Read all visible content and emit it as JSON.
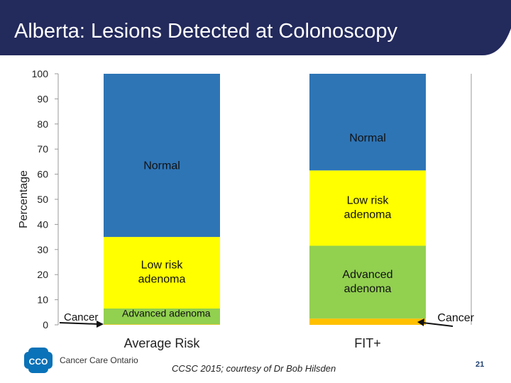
{
  "slide": {
    "title": "Alberta: Lesions Detected at Colonoscopy",
    "logo_text": "Cancer Care Ontario",
    "logo_abbrev": "CCO",
    "credit": "CCSC 2015; courtesy of Dr Bob Hilsden",
    "page_number": "21"
  },
  "colors": {
    "title_bar": "#232a5c",
    "normal": "#2e75b6",
    "low_risk": "#ffff00",
    "advanced": "#92d050",
    "cancer": "#ffc000"
  },
  "chart_data": {
    "type": "bar",
    "stacked": true,
    "ylabel": "Percentage",
    "ylim": [
      0,
      100
    ],
    "yticks": [
      0,
      10,
      20,
      30,
      40,
      50,
      60,
      70,
      80,
      90,
      100
    ],
    "categories": [
      "Average Risk",
      "FIT+"
    ],
    "series": [
      {
        "name": "Cancer",
        "values": [
          0.2,
          2.5
        ],
        "color": "#ffc000"
      },
      {
        "name": "Advanced adenoma",
        "values": [
          6.3,
          29.0
        ],
        "color": "#92d050"
      },
      {
        "name": "Low risk adenoma",
        "values": [
          28.5,
          30.0
        ],
        "color": "#ffff00"
      },
      {
        "name": "Normal",
        "values": [
          65.0,
          38.5
        ],
        "color": "#2e75b6"
      }
    ],
    "annotations": [
      {
        "text": "Normal",
        "category": 0,
        "series": "Normal"
      },
      {
        "text": "Low risk adenoma",
        "category": 0,
        "series": "Low risk adenoma"
      },
      {
        "text": "Advanced adenoma",
        "category": 0,
        "series": "Advanced adenoma"
      },
      {
        "text": "Cancer",
        "category": 0,
        "series": "Cancer",
        "arrow": true
      },
      {
        "text": "Normal",
        "category": 1,
        "series": "Normal"
      },
      {
        "text": "Low risk adenoma",
        "category": 1,
        "series": "Low risk adenoma"
      },
      {
        "text": "Advanced adenoma",
        "category": 1,
        "series": "Advanced adenoma"
      },
      {
        "text": "Cancer",
        "category": 1,
        "series": "Cancer",
        "arrow": true
      }
    ]
  }
}
